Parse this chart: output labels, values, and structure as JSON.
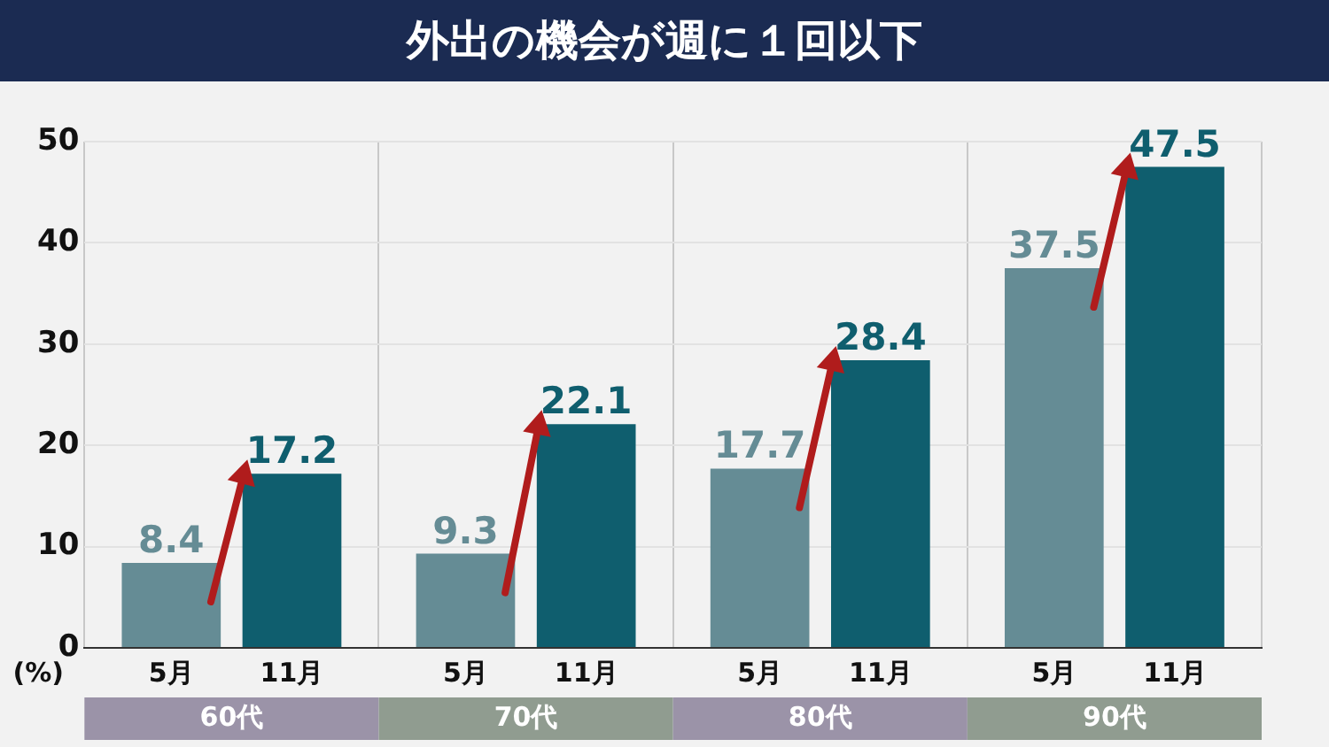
{
  "chart_data": {
    "type": "bar",
    "title": "外出の機会が週に１回以下",
    "ylabel": "(%)",
    "categories": [
      "60代",
      "70代",
      "80代",
      "90代"
    ],
    "series": [
      {
        "name": "5月",
        "color": "#658c95",
        "values": [
          8.4,
          9.3,
          17.7,
          37.5
        ]
      },
      {
        "name": "11月",
        "color": "#0f5e6e",
        "values": [
          17.2,
          22.1,
          28.4,
          47.5
        ]
      }
    ],
    "ylim": [
      0,
      50
    ],
    "yticks": [
      0,
      10,
      20,
      30,
      40,
      50
    ],
    "grid": true,
    "data_labels": true,
    "legend": false
  }
}
